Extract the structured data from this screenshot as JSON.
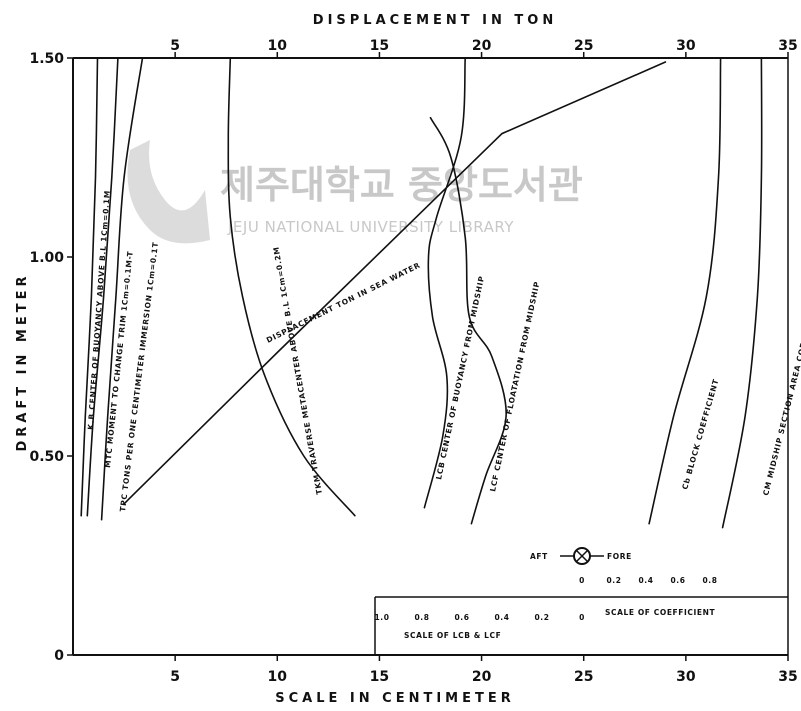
{
  "chart_data": {
    "type": "line",
    "title": "",
    "top_axis": {
      "label": "DISPLACEMENT IN TON",
      "ticks": [
        "5",
        "10",
        "15",
        "20",
        "25",
        "30",
        "35"
      ],
      "range": [
        0,
        35
      ]
    },
    "bottom_axis": {
      "label": "SCALE IN CENTIMETER",
      "ticks": [
        "5",
        "10",
        "15",
        "20",
        "25",
        "30",
        "35"
      ],
      "range": [
        0,
        35
      ]
    },
    "y_axis": {
      "label": "DRAFT IN METER",
      "ticks": [
        "0",
        "0.50",
        "1.00",
        "1.50"
      ],
      "range": [
        0,
        1.5
      ]
    },
    "grid": false,
    "legend": "none",
    "series": [
      {
        "label": "K.B CENTER OF BUOYANCY ABOVE B.L 1Cm=0.1M",
        "points": [
          [
            0.4,
            0.35
          ],
          [
            0.6,
            0.6
          ],
          [
            0.9,
            0.9
          ],
          [
            1.1,
            1.2
          ],
          [
            1.2,
            1.5
          ]
        ]
      },
      {
        "label": "MTC MOMENT TO CHANGE TRIM 1Cm=0.1M-T",
        "points": [
          [
            0.7,
            0.35
          ],
          [
            1.0,
            0.6
          ],
          [
            1.5,
            0.9
          ],
          [
            1.9,
            1.2
          ],
          [
            2.2,
            1.5
          ]
        ]
      },
      {
        "label": "TPC TONS PER ONE CENTIMETER IMMERSION 1Cm=0.1T",
        "points": [
          [
            1.4,
            0.34
          ],
          [
            1.7,
            0.6
          ],
          [
            2.1,
            0.9
          ],
          [
            2.5,
            1.2
          ],
          [
            3.4,
            1.5
          ]
        ]
      },
      {
        "label": "DISPLACEMENT TON IN SEA WATER",
        "points": [
          [
            2.5,
            0.38
          ],
          [
            10.0,
            0.76
          ],
          [
            17.0,
            1.11
          ],
          [
            21.0,
            1.31
          ],
          [
            29.0,
            1.49
          ]
        ]
      },
      {
        "label": "TKM TRAVERSE METACENTER ABOVE B.L 1Cm=0.2M",
        "points": [
          [
            7.7,
            1.5
          ],
          [
            7.6,
            1.3
          ],
          [
            7.7,
            1.1
          ],
          [
            8.3,
            0.9
          ],
          [
            9.4,
            0.7
          ],
          [
            11.3,
            0.5
          ],
          [
            13.8,
            0.35
          ]
        ]
      },
      {
        "label": "LCB CENTER OF BUOYANCY FROM MIDSHIP",
        "points": [
          [
            19.2,
            1.5
          ],
          [
            19.0,
            1.3
          ],
          [
            17.8,
            1.1
          ],
          [
            17.4,
            1.0
          ],
          [
            17.6,
            0.85
          ],
          [
            18.3,
            0.7
          ],
          [
            18.1,
            0.55
          ],
          [
            17.2,
            0.37
          ]
        ]
      },
      {
        "label": "LCF CENTER OF FLOATATION FROM MIDSHIP",
        "points": [
          [
            17.5,
            1.35
          ],
          [
            18.5,
            1.25
          ],
          [
            19.2,
            1.05
          ],
          [
            19.4,
            0.85
          ],
          [
            20.5,
            0.75
          ],
          [
            21.2,
            0.6
          ],
          [
            20.2,
            0.45
          ],
          [
            19.5,
            0.33
          ]
        ]
      },
      {
        "label": "Cb BLOCK COEFFICIENT",
        "points": [
          [
            31.7,
            1.5
          ],
          [
            31.6,
            1.2
          ],
          [
            31.0,
            0.9
          ],
          [
            29.4,
            0.6
          ],
          [
            28.2,
            0.33
          ]
        ]
      },
      {
        "label": "CM MIDSHIP SECTION AREA COEFFICIENT",
        "points": [
          [
            33.7,
            1.5
          ],
          [
            33.7,
            1.2
          ],
          [
            33.5,
            0.9
          ],
          [
            32.9,
            0.6
          ],
          [
            31.8,
            0.32
          ]
        ]
      }
    ],
    "inset": {
      "aft_label": "AFT",
      "fore_label": "FORE",
      "coefficient_ticks": [
        "0",
        "0.2",
        "0.4",
        "0.6",
        "0.8"
      ],
      "coefficient_label": "SCALE OF COEFFICIENT",
      "lcb_lcf_ticks": [
        "1.0",
        "0.8",
        "0.6",
        "0.4",
        "0.2",
        "0"
      ],
      "lcb_lcf_label": "SCALE OF LCB & LCF"
    }
  },
  "watermark": {
    "korean": "제주대학교 중앙도서관",
    "english": "JEJU NATIONAL UNIVERSITY LIBRARY"
  }
}
